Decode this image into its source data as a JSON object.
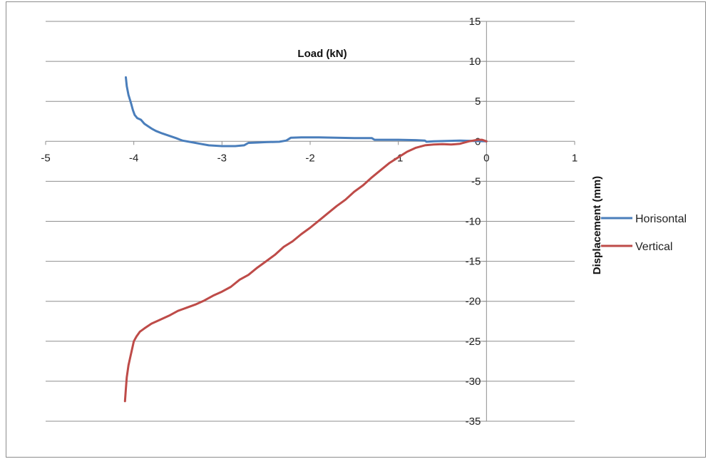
{
  "chart_data": {
    "type": "line",
    "xlabel": "Load (kN)",
    "ylabel": "Displacement (mm)",
    "xlim": [
      -5,
      1
    ],
    "ylim": [
      -35,
      15
    ],
    "x_ticks": [
      -5,
      -4,
      -3,
      -2,
      -1,
      0,
      1
    ],
    "y_ticks": [
      15,
      10,
      5,
      0,
      -5,
      -10,
      -15,
      -20,
      -25,
      -30,
      -35
    ],
    "grid": "horizontal",
    "legend": "right",
    "series": [
      {
        "name": "Horisontal",
        "color": "#4a7ebb",
        "x": [
          -4.09,
          -4.08,
          -4.06,
          -4.03,
          -4.01,
          -3.99,
          -3.96,
          -3.92,
          -3.88,
          -3.84,
          -3.8,
          -3.75,
          -3.68,
          -3.6,
          -3.52,
          -3.45,
          -3.35,
          -3.25,
          -3.15,
          -3.0,
          -2.85,
          -2.75,
          -2.7,
          -2.6,
          -2.5,
          -2.35,
          -2.27,
          -2.22,
          -2.1,
          -1.9,
          -1.7,
          -1.5,
          -1.3,
          -1.27,
          -1.0,
          -0.8,
          -0.7,
          -0.68,
          -0.6,
          -0.45,
          -0.3,
          -0.15,
          0.0
        ],
        "y": [
          8.0,
          6.9,
          5.8,
          4.7,
          3.9,
          3.3,
          2.9,
          2.7,
          2.2,
          1.9,
          1.6,
          1.3,
          1.0,
          0.7,
          0.4,
          0.1,
          -0.1,
          -0.3,
          -0.5,
          -0.6,
          -0.6,
          -0.5,
          -0.2,
          -0.15,
          -0.1,
          -0.05,
          0.1,
          0.45,
          0.5,
          0.5,
          0.45,
          0.4,
          0.4,
          0.2,
          0.2,
          0.15,
          0.1,
          -0.05,
          0.0,
          0.05,
          0.1,
          0.05,
          0.0
        ]
      },
      {
        "name": "Vertical",
        "color": "#be4b48",
        "x": [
          -4.1,
          -4.09,
          -4.08,
          -4.06,
          -4.04,
          -4.02,
          -4.0,
          -3.97,
          -3.93,
          -3.88,
          -3.8,
          -3.7,
          -3.6,
          -3.5,
          -3.4,
          -3.3,
          -3.2,
          -3.1,
          -3.0,
          -2.9,
          -2.8,
          -2.7,
          -2.6,
          -2.5,
          -2.4,
          -2.3,
          -2.2,
          -2.1,
          -2.0,
          -1.9,
          -1.8,
          -1.7,
          -1.6,
          -1.5,
          -1.4,
          -1.3,
          -1.2,
          -1.1,
          -1.0,
          -0.9,
          -0.8,
          -0.7,
          -0.6,
          -0.5,
          -0.4,
          -0.3,
          -0.2,
          -0.1,
          -0.05,
          0.0
        ],
        "y": [
          -32.5,
          -31.0,
          -29.5,
          -28.0,
          -27.0,
          -26.0,
          -25.0,
          -24.4,
          -23.8,
          -23.4,
          -22.8,
          -22.3,
          -21.8,
          -21.2,
          -20.8,
          -20.4,
          -19.9,
          -19.3,
          -18.8,
          -18.2,
          -17.3,
          -16.7,
          -15.8,
          -15.0,
          -14.2,
          -13.2,
          -12.5,
          -11.6,
          -10.8,
          -9.9,
          -9.0,
          -8.1,
          -7.3,
          -6.3,
          -5.5,
          -4.5,
          -3.6,
          -2.7,
          -2.0,
          -1.3,
          -0.8,
          -0.5,
          -0.4,
          -0.35,
          -0.4,
          -0.3,
          0.0,
          0.2,
          0.2,
          0.0
        ]
      }
    ]
  }
}
